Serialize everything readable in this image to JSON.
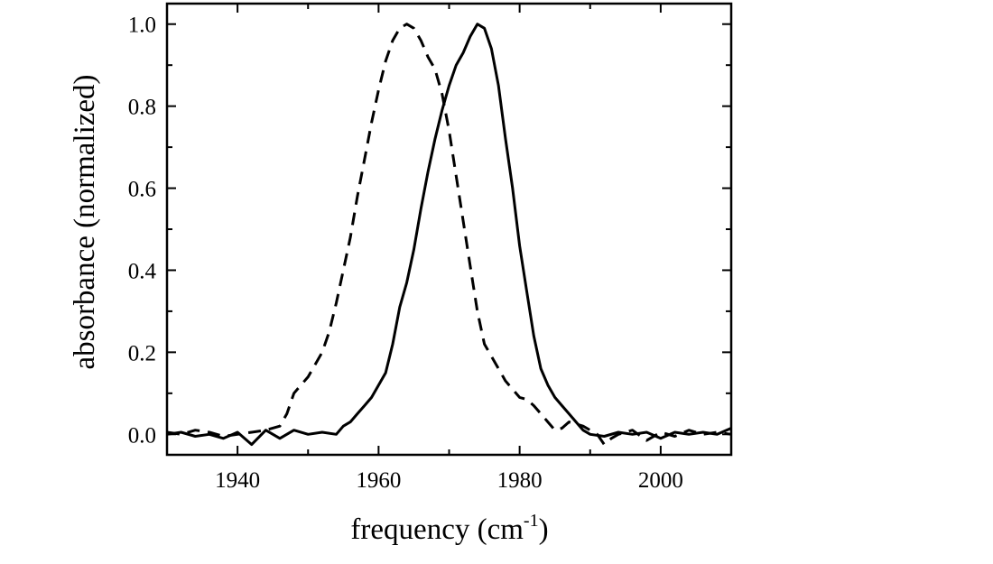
{
  "chart_data": {
    "type": "line",
    "title": "",
    "xlabel": {
      "text": "frequency (cm",
      "sup": "-1",
      "suffix": ")"
    },
    "ylabel": "absorbance (normalized)",
    "xlim": [
      1930,
      2010
    ],
    "ylim": [
      -0.05,
      1.05
    ],
    "x_ticks": [
      1940,
      1960,
      1980,
      2000
    ],
    "x_tick_labels": [
      "1940",
      "1960",
      "1980",
      "2000"
    ],
    "y_ticks": [
      0.0,
      0.2,
      0.4,
      0.6,
      0.8,
      1.0
    ],
    "y_tick_labels": [
      "0.0",
      "0.2",
      "0.4",
      "0.6",
      "0.8",
      "1.0"
    ],
    "legend": "none",
    "grid": false,
    "series": [
      {
        "style": "solid",
        "color": "#000000",
        "points": [
          [
            1930,
            0.0
          ],
          [
            1932,
            0.005
          ],
          [
            1934,
            -0.005
          ],
          [
            1936,
            0.0
          ],
          [
            1938,
            -0.01
          ],
          [
            1940,
            0.005
          ],
          [
            1942,
            -0.025
          ],
          [
            1944,
            0.01
          ],
          [
            1946,
            -0.01
          ],
          [
            1948,
            0.01
          ],
          [
            1950,
            0.0
          ],
          [
            1952,
            0.005
          ],
          [
            1954,
            0.0
          ],
          [
            1955,
            0.02
          ],
          [
            1956,
            0.03
          ],
          [
            1957,
            0.05
          ],
          [
            1958,
            0.07
          ],
          [
            1959,
            0.09
          ],
          [
            1960,
            0.12
          ],
          [
            1961,
            0.15
          ],
          [
            1962,
            0.22
          ],
          [
            1963,
            0.31
          ],
          [
            1964,
            0.37
          ],
          [
            1965,
            0.45
          ],
          [
            1966,
            0.55
          ],
          [
            1967,
            0.64
          ],
          [
            1968,
            0.72
          ],
          [
            1969,
            0.79
          ],
          [
            1970,
            0.85
          ],
          [
            1971,
            0.9
          ],
          [
            1972,
            0.93
          ],
          [
            1973,
            0.97
          ],
          [
            1974,
            1.0
          ],
          [
            1975,
            0.99
          ],
          [
            1976,
            0.94
          ],
          [
            1977,
            0.85
          ],
          [
            1978,
            0.72
          ],
          [
            1979,
            0.6
          ],
          [
            1980,
            0.46
          ],
          [
            1981,
            0.35
          ],
          [
            1982,
            0.24
          ],
          [
            1983,
            0.16
          ],
          [
            1984,
            0.12
          ],
          [
            1985,
            0.09
          ],
          [
            1986,
            0.07
          ],
          [
            1987,
            0.05
          ],
          [
            1988,
            0.03
          ],
          [
            1989,
            0.01
          ],
          [
            1990,
            0.0
          ],
          [
            1992,
            -0.005
          ],
          [
            1994,
            0.005
          ],
          [
            1996,
            0.0
          ],
          [
            1998,
            0.005
          ],
          [
            2000,
            -0.01
          ],
          [
            2002,
            0.005
          ],
          [
            2004,
            0.0
          ],
          [
            2006,
            0.005
          ],
          [
            2008,
            0.0
          ],
          [
            2010,
            0.015
          ]
        ]
      },
      {
        "style": "dashed",
        "color": "#000000",
        "points": [
          [
            1930,
            0.005
          ],
          [
            1932,
            0.0
          ],
          [
            1934,
            0.01
          ],
          [
            1936,
            0.005
          ],
          [
            1938,
            -0.005
          ],
          [
            1940,
            0.0
          ],
          [
            1942,
            0.005
          ],
          [
            1944,
            0.01
          ],
          [
            1946,
            0.02
          ],
          [
            1947,
            0.05
          ],
          [
            1948,
            0.1
          ],
          [
            1949,
            0.12
          ],
          [
            1950,
            0.14
          ],
          [
            1951,
            0.17
          ],
          [
            1952,
            0.2
          ],
          [
            1953,
            0.25
          ],
          [
            1954,
            0.32
          ],
          [
            1955,
            0.4
          ],
          [
            1956,
            0.48
          ],
          [
            1957,
            0.58
          ],
          [
            1958,
            0.67
          ],
          [
            1959,
            0.76
          ],
          [
            1960,
            0.84
          ],
          [
            1961,
            0.91
          ],
          [
            1962,
            0.96
          ],
          [
            1963,
            0.99
          ],
          [
            1964,
            1.0
          ],
          [
            1965,
            0.99
          ],
          [
            1966,
            0.96
          ],
          [
            1967,
            0.92
          ],
          [
            1968,
            0.89
          ],
          [
            1969,
            0.83
          ],
          [
            1970,
            0.74
          ],
          [
            1971,
            0.63
          ],
          [
            1972,
            0.52
          ],
          [
            1973,
            0.41
          ],
          [
            1974,
            0.3
          ],
          [
            1975,
            0.22
          ],
          [
            1976,
            0.19
          ],
          [
            1977,
            0.16
          ],
          [
            1978,
            0.13
          ],
          [
            1979,
            0.11
          ],
          [
            1980,
            0.09
          ],
          [
            1981,
            0.085
          ],
          [
            1982,
            0.07
          ],
          [
            1983,
            0.05
          ],
          [
            1984,
            0.03
          ],
          [
            1985,
            0.01
          ],
          [
            1986,
            0.015
          ],
          [
            1987,
            0.03
          ],
          [
            1988,
            0.025
          ],
          [
            1989,
            0.02
          ],
          [
            1990,
            0.01
          ],
          [
            1991,
            0.0
          ],
          [
            1992,
            -0.025
          ],
          [
            1993,
            -0.01
          ],
          [
            1994,
            0.0
          ],
          [
            1996,
            0.01
          ],
          [
            1998,
            -0.015
          ],
          [
            2000,
            0.005
          ],
          [
            2002,
            -0.005
          ],
          [
            2004,
            0.01
          ],
          [
            2006,
            0.0
          ],
          [
            2008,
            0.005
          ],
          [
            2010,
            0.0
          ]
        ]
      }
    ]
  }
}
